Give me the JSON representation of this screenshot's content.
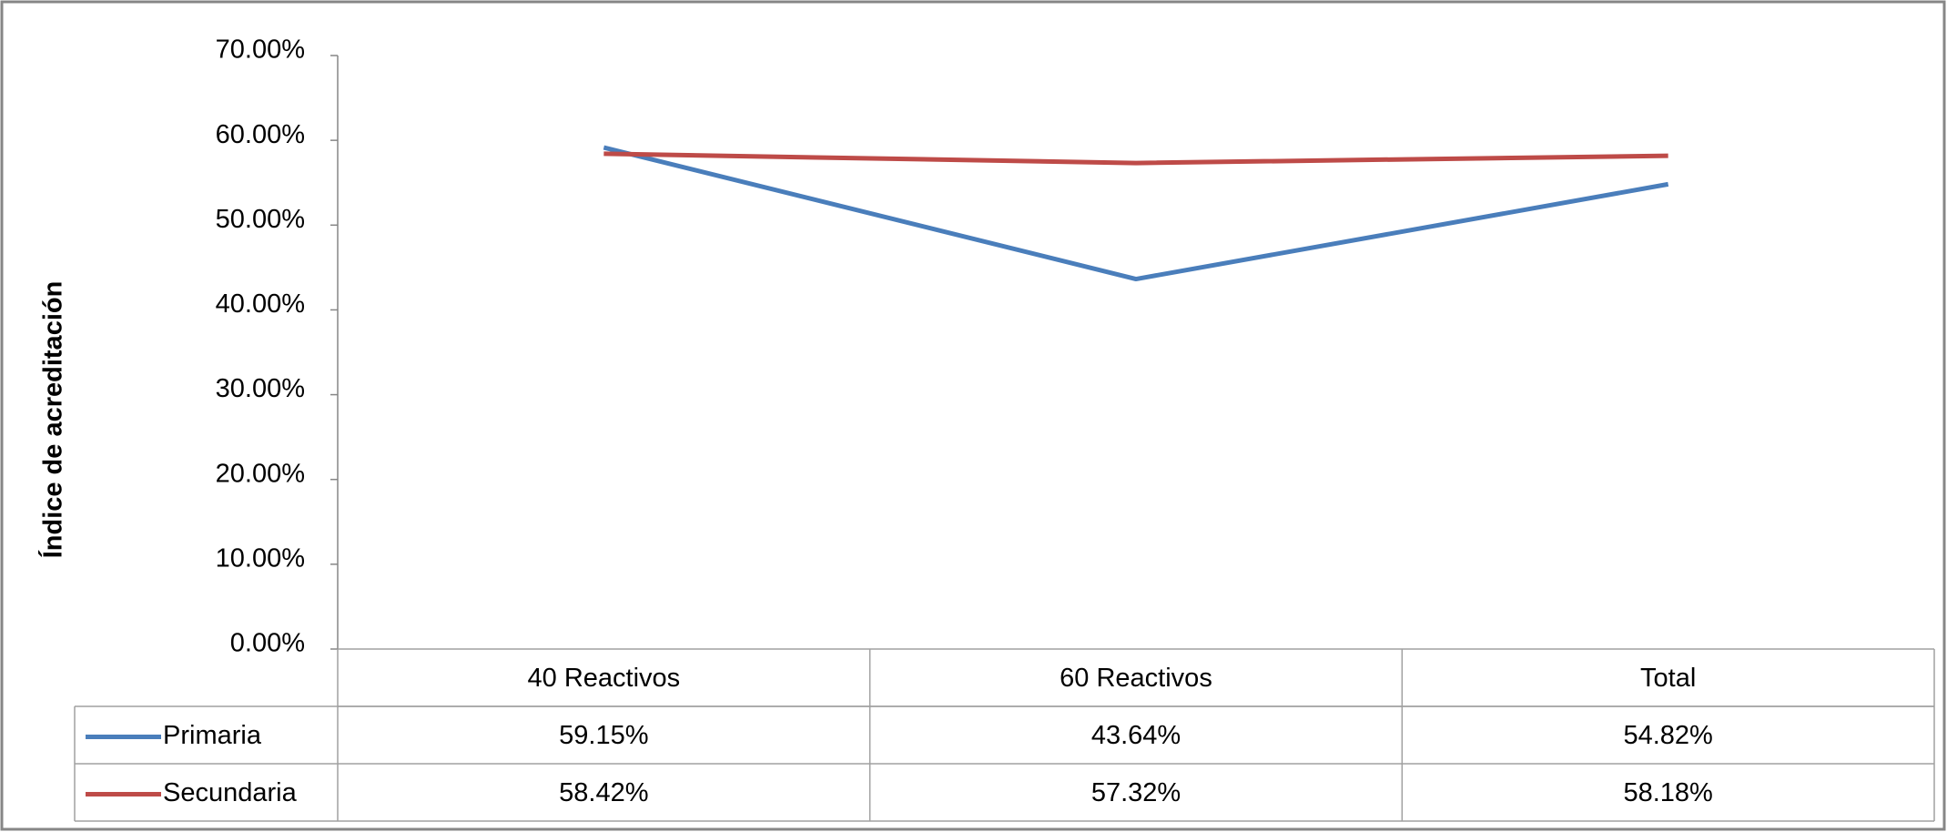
{
  "chart_data": {
    "type": "line",
    "y_label": "Índice de acreditación",
    "categories": [
      "40 Reactivos",
      "60 Reactivos",
      "Total"
    ],
    "series": [
      {
        "name": "Primaria",
        "color": "#4a7ebb",
        "values": [
          59.15,
          43.64,
          54.82
        ],
        "value_labels": [
          "59.15%",
          "43.64%",
          "54.82%"
        ]
      },
      {
        "name": "Secundaria",
        "color": "#be4b48",
        "values": [
          58.42,
          57.32,
          58.18
        ],
        "value_labels": [
          "58.42%",
          "57.32%",
          "58.18%"
        ]
      }
    ],
    "ylim": [
      0,
      70
    ],
    "yticks": [
      {
        "value": 0,
        "label": "0.00%"
      },
      {
        "value": 10,
        "label": "10.00%"
      },
      {
        "value": 20,
        "label": "20.00%"
      },
      {
        "value": 30,
        "label": "30.00%"
      },
      {
        "value": 40,
        "label": "40.00%"
      },
      {
        "value": 50,
        "label": "50.00%"
      },
      {
        "value": 60,
        "label": "60.00%"
      },
      {
        "value": 70,
        "label": "70.00%"
      }
    ],
    "grid": false
  }
}
